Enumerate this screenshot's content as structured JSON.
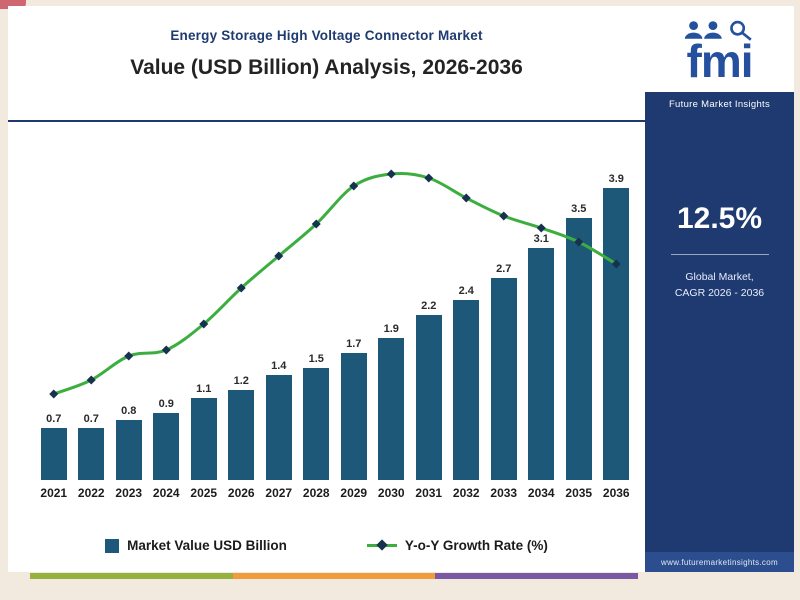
{
  "header": {
    "title": "Energy Storage High Voltage Connector Market",
    "subtitle": "Value (USD Billion) Analysis, 2026-2036"
  },
  "legend": {
    "bar_label": "Market Value USD Billion",
    "line_label": "Y-o-Y Growth Rate (%)"
  },
  "sidebar": {
    "logo_text": "fmi",
    "logo_tagline": "Future Market Insights",
    "cagr_value": "12.5%",
    "cagr_label_line1": "Global Market,",
    "cagr_label_line2": "CAGR 2026 - 2036",
    "website": "www.futuremarketinsights.com",
    "bg_color": "#1e3a70"
  },
  "chart_data": {
    "type": "bar",
    "combo": "bar+line",
    "title": "Energy Storage High Voltage Connector Market",
    "subtitle": "Value (USD Billion) Analysis, 2026-2036",
    "categories": [
      "2021",
      "2022",
      "2023",
      "2024",
      "2025",
      "2026",
      "2027",
      "2028",
      "2029",
      "2030",
      "2031",
      "2032",
      "2033",
      "2034",
      "2035",
      "2036"
    ],
    "series": [
      {
        "name": "Market Value USD Billion",
        "type": "bar",
        "color": "#1d5878",
        "values": [
          0.7,
          0.7,
          0.8,
          0.9,
          1.1,
          1.2,
          1.4,
          1.5,
          1.7,
          1.9,
          2.2,
          2.4,
          2.7,
          3.1,
          3.5,
          3.9
        ]
      },
      {
        "name": "Y-o-Y Growth Rate (%)",
        "type": "line",
        "color": "#3cae3f",
        "marker_color": "#16324f",
        "values": [
          4.3,
          5.0,
          6.2,
          6.5,
          7.8,
          9.6,
          11.2,
          12.8,
          14.7,
          15.3,
          15.1,
          14.1,
          13.2,
          12.6,
          11.9,
          10.8
        ],
        "values_estimated_from_plot": true
      }
    ],
    "xlabel": "",
    "ylabel": "",
    "ylim_bar": [
      0,
      4.2
    ],
    "data_labels_shown": true,
    "legend_position": "bottom",
    "grid": false
  },
  "footer_strip": {
    "colors": [
      "#94b23d",
      "#f09c3c",
      "#7b58a4"
    ]
  }
}
